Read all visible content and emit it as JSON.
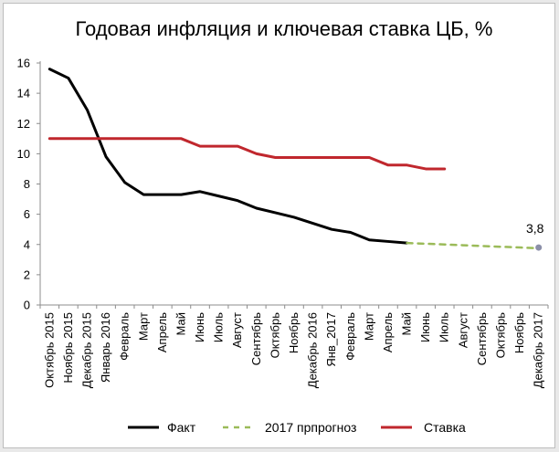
{
  "chart_data": {
    "type": "line",
    "title": "Годовая инфляция и ключевая ставка ЦБ, %",
    "xlabel": "",
    "ylabel": "",
    "ylim": [
      0,
      16
    ],
    "yticks": [
      0,
      2,
      4,
      6,
      8,
      10,
      12,
      14,
      16
    ],
    "grid": false,
    "legend_position": "bottom",
    "categories": [
      "Октябрь 2015",
      "Ноябрь 2015",
      "Декабрь 2015",
      "Январь 2016",
      "Февраль",
      "Март",
      "Апрель",
      "Май",
      "Июнь",
      "Июль",
      "Август",
      "Сентябрь",
      "Октябрь",
      "Ноябрь",
      "Декабрь 2016",
      "Янв_2017",
      "Февраль",
      "Март",
      "Апрель",
      "Май",
      "Июнь",
      "Июль",
      "Август",
      "Сентябрь",
      "Октябрь",
      "Ноябрь",
      "Декабрь 2017"
    ],
    "series": [
      {
        "name": "Факт",
        "color": "#000000",
        "style": "solid",
        "values": [
          15.6,
          15.0,
          12.9,
          9.8,
          8.1,
          7.3,
          7.3,
          7.3,
          7.5,
          7.2,
          6.9,
          6.4,
          6.1,
          5.8,
          5.4,
          5.0,
          4.8,
          4.3,
          4.2,
          4.1,
          null,
          null,
          null,
          null,
          null,
          null,
          null
        ]
      },
      {
        "name": "2017 прпрогноз",
        "color": "#9bbb59",
        "style": "dashed",
        "values": [
          null,
          null,
          null,
          null,
          null,
          null,
          null,
          null,
          null,
          null,
          null,
          null,
          null,
          null,
          null,
          null,
          null,
          null,
          null,
          4.1,
          4.05,
          4.0,
          3.95,
          3.9,
          3.85,
          3.8,
          3.75
        ]
      },
      {
        "name": "Ставка",
        "color": "#c0272d",
        "style": "solid",
        "values": [
          11.0,
          11.0,
          11.0,
          11.0,
          11.0,
          11.0,
          11.0,
          11.0,
          10.5,
          10.5,
          10.5,
          10.0,
          9.75,
          9.75,
          9.75,
          9.75,
          9.75,
          9.75,
          9.25,
          9.25,
          9.0,
          9.0,
          null,
          null,
          null,
          null,
          null
        ]
      }
    ],
    "annotations": [
      {
        "category": "Декабрь 2017",
        "value": 3.8,
        "text": "3,8",
        "marker_color": "#8b8fa8"
      }
    ]
  }
}
